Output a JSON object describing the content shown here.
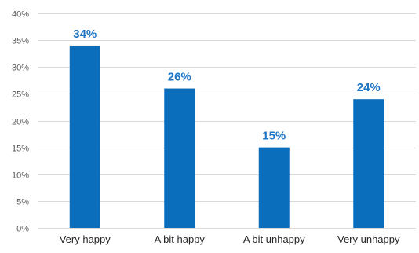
{
  "chart_data": {
    "type": "bar",
    "title": "",
    "xlabel": "",
    "ylabel": "",
    "categories": [
      "Very happy",
      "A bit happy",
      "A bit unhappy",
      "Very unhappy"
    ],
    "values": [
      34,
      26,
      15,
      24
    ],
    "data_labels": [
      "34%",
      "26%",
      "15%",
      "24%"
    ],
    "yticks": [
      0,
      5,
      10,
      15,
      20,
      25,
      30,
      35,
      40
    ],
    "ytick_labels": [
      "0%",
      "5%",
      "10%",
      "15%",
      "20%",
      "25%",
      "30%",
      "35%",
      "40%"
    ],
    "ylim": [
      0,
      40
    ],
    "grid": true,
    "legend": "none",
    "colors": {
      "bar": "#0a6ebd",
      "label": "#1f75c4",
      "grid": "#d9d9d9"
    }
  }
}
